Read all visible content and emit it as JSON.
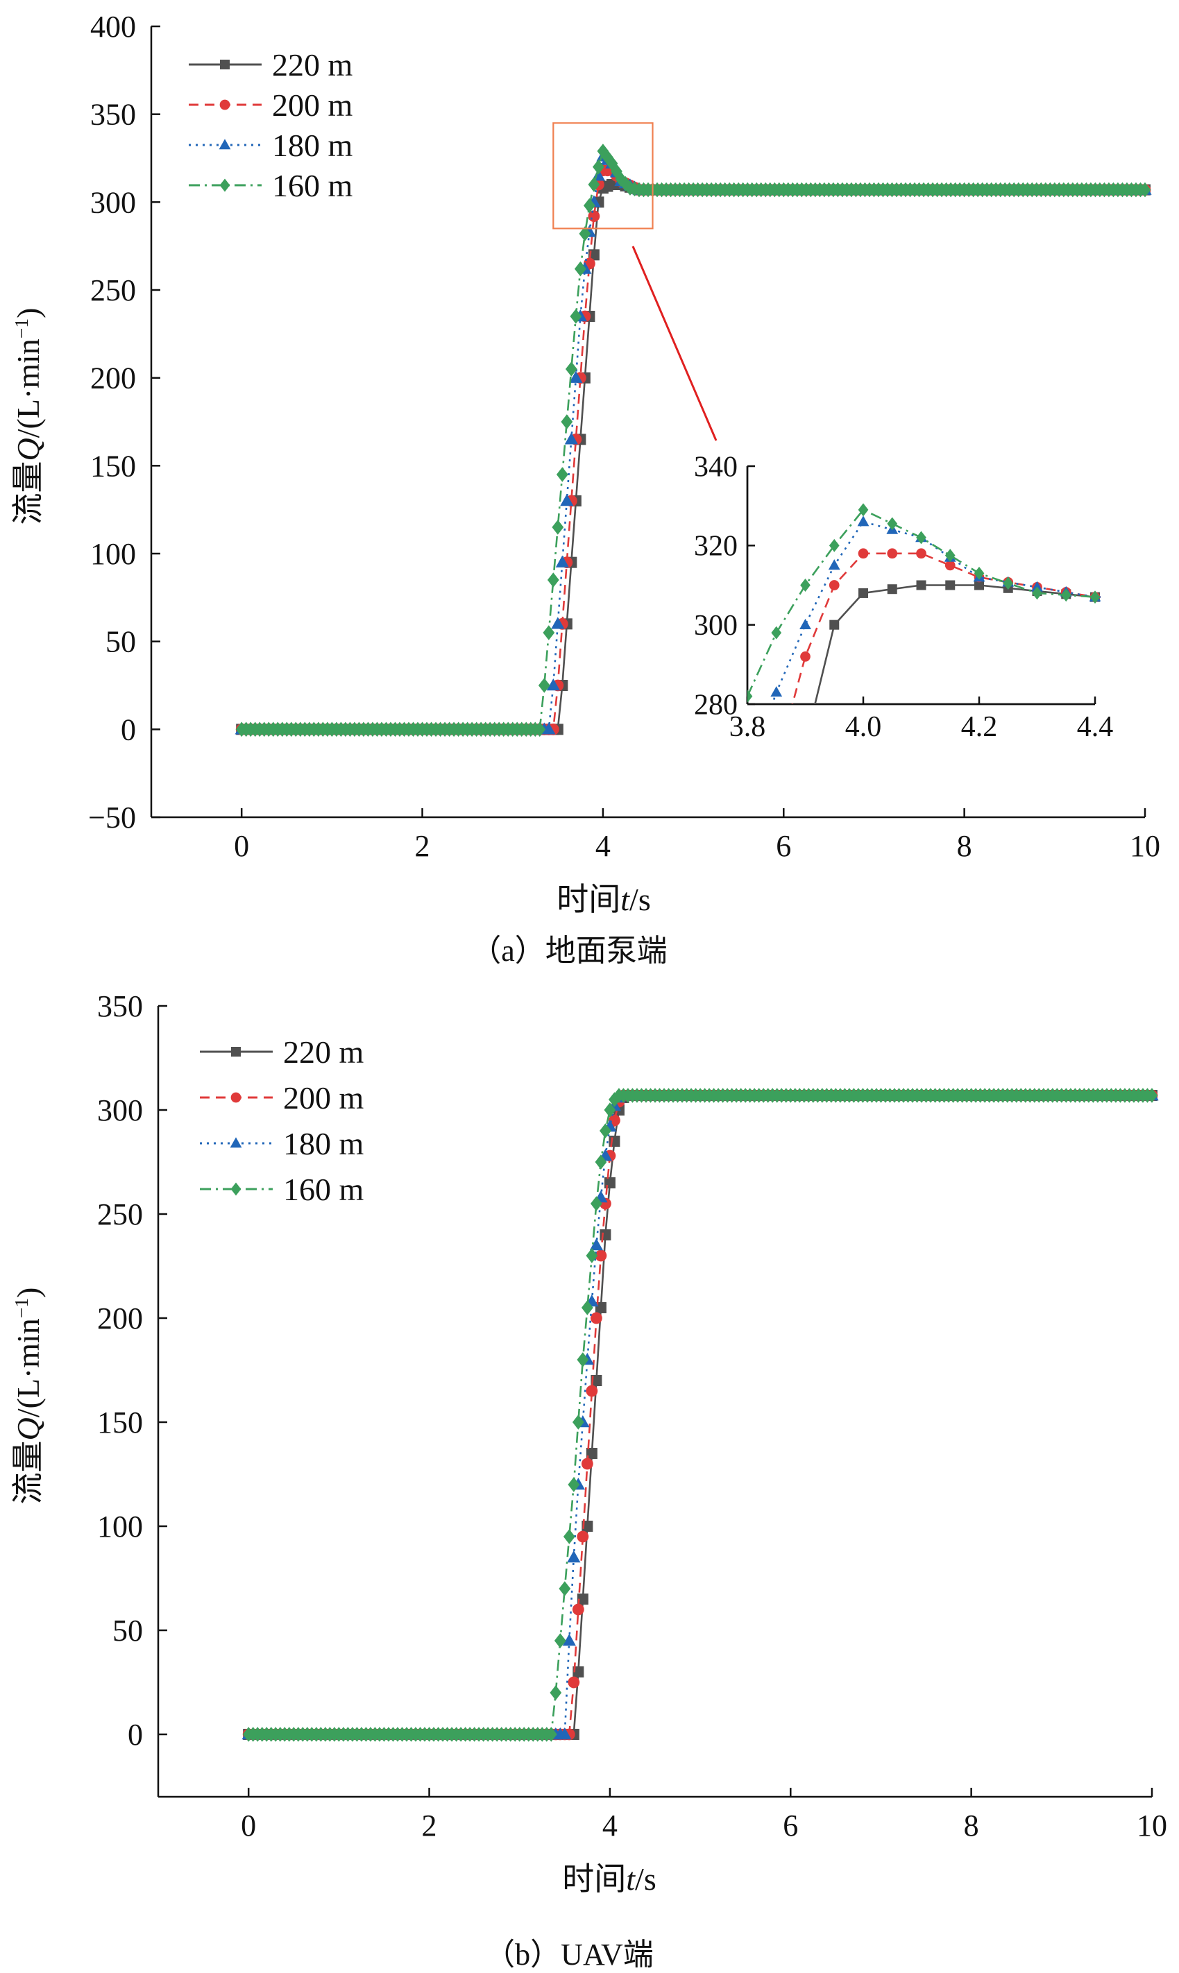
{
  "figure": {
    "top_panel_caption": "（a）地面泵端",
    "bottom_panel_caption": "（b）UAV端"
  },
  "chart_data": [
    {
      "type": "line",
      "panel": "a",
      "xlabel_prefix": "时间",
      "xlabel_var": "t",
      "xlabel_unit": "/s",
      "ylabel_prefix": "流量",
      "ylabel_var": "Q",
      "ylabel_unit": "/(L·min",
      "ylabel_exp": "−1",
      "ylabel_close": ")",
      "xlim": [
        -1,
        10
      ],
      "ylim": [
        -50,
        400
      ],
      "xticks": [
        0,
        2,
        4,
        6,
        8,
        10
      ],
      "yticks": [
        -50,
        0,
        50,
        100,
        150,
        200,
        250,
        300,
        350,
        400
      ],
      "xtick_labels": [
        "0",
        "2",
        "4",
        "6",
        "8",
        "10"
      ],
      "ytick_labels": [
        "−50",
        "0",
        "50",
        "100",
        "150",
        "200",
        "250",
        "300",
        "350",
        "400"
      ],
      "legend_position": "top-left",
      "series": [
        {
          "name": "220 m",
          "color": "#505050",
          "dash": "solid",
          "marker": "square",
          "x": [
            0,
            3.5,
            3.55,
            3.6,
            3.65,
            3.7,
            3.75,
            3.8,
            3.85,
            3.9,
            3.95,
            4.0,
            4.1,
            4.2,
            4.4,
            10
          ],
          "y": [
            0,
            0,
            25,
            60,
            95,
            130,
            165,
            200,
            235,
            270,
            300,
            308,
            310,
            310,
            307,
            307
          ]
        },
        {
          "name": "200 m",
          "color": "#e03a3a",
          "dash": "dashed",
          "marker": "circle",
          "x": [
            0,
            3.45,
            3.5,
            3.55,
            3.6,
            3.65,
            3.7,
            3.75,
            3.8,
            3.85,
            3.9,
            3.95,
            4.0,
            4.1,
            4.2,
            4.4,
            10
          ],
          "y": [
            0,
            0,
            25,
            60,
            95,
            130,
            165,
            200,
            235,
            265,
            292,
            310,
            318,
            318,
            312,
            307,
            307
          ]
        },
        {
          "name": "180 m",
          "color": "#2166b8",
          "dash": "dotted",
          "marker": "triangle",
          "x": [
            0,
            3.4,
            3.45,
            3.5,
            3.55,
            3.6,
            3.65,
            3.7,
            3.75,
            3.8,
            3.85,
            3.9,
            3.95,
            4.0,
            4.1,
            4.2,
            4.4,
            10
          ],
          "y": [
            0,
            0,
            25,
            60,
            95,
            130,
            165,
            200,
            235,
            262,
            283,
            300,
            315,
            326,
            322,
            312,
            307,
            307
          ]
        },
        {
          "name": "160 m",
          "color": "#3ca05c",
          "dash": "dashdot",
          "marker": "diamond",
          "x": [
            0,
            3.3,
            3.35,
            3.4,
            3.45,
            3.5,
            3.55,
            3.6,
            3.65,
            3.7,
            3.75,
            3.8,
            3.85,
            3.9,
            3.95,
            4.0,
            4.1,
            4.2,
            4.3,
            4.4,
            10
          ],
          "y": [
            0,
            0,
            25,
            55,
            85,
            115,
            145,
            175,
            205,
            235,
            262,
            282,
            298,
            310,
            320,
            329,
            322,
            313,
            308,
            307,
            307
          ]
        }
      ],
      "inset": {
        "xlim": [
          3.8,
          4.4
        ],
        "ylim": [
          280,
          340
        ],
        "xticks": [
          3.8,
          4.0,
          4.2,
          4.4
        ],
        "yticks": [
          280,
          300,
          320,
          340
        ],
        "xtick_labels": [
          "3.8",
          "4.0",
          "4.2",
          "4.4"
        ],
        "ytick_labels": [
          "280",
          "300",
          "320",
          "340"
        ],
        "highlight_box": {
          "x": [
            3.45,
            4.55
          ],
          "y": [
            285,
            345
          ]
        },
        "highlight_color": "#f08050",
        "pointer_color": "#e02020"
      }
    },
    {
      "type": "line",
      "panel": "b",
      "xlabel_prefix": "时间",
      "xlabel_var": "t",
      "xlabel_unit": "/s",
      "ylabel_prefix": "流量",
      "ylabel_var": "Q",
      "ylabel_unit": "/(L·min",
      "ylabel_exp": "−1",
      "ylabel_close": ")",
      "xlim": [
        -1,
        10
      ],
      "ylim": [
        -30,
        350
      ],
      "xticks": [
        0,
        2,
        4,
        6,
        8,
        10
      ],
      "yticks": [
        0,
        50,
        100,
        150,
        200,
        250,
        300,
        350
      ],
      "xtick_labels": [
        "0",
        "2",
        "4",
        "6",
        "8",
        "10"
      ],
      "ytick_labels": [
        "0",
        "50",
        "100",
        "150",
        "200",
        "250",
        "300",
        "350"
      ],
      "legend_position": "top-left",
      "series": [
        {
          "name": "220 m",
          "color": "#505050",
          "dash": "solid",
          "marker": "square",
          "x": [
            0,
            3.6,
            3.65,
            3.7,
            3.75,
            3.8,
            3.85,
            3.9,
            3.95,
            4.0,
            4.05,
            4.1,
            4.15,
            4.2,
            4.3,
            4.4,
            10
          ],
          "y": [
            0,
            0,
            30,
            65,
            100,
            135,
            170,
            205,
            240,
            265,
            285,
            300,
            306,
            307,
            307,
            307,
            307
          ]
        },
        {
          "name": "200 m",
          "color": "#e03a3a",
          "dash": "dashed",
          "marker": "circle",
          "x": [
            0,
            3.55,
            3.6,
            3.65,
            3.7,
            3.75,
            3.8,
            3.85,
            3.9,
            3.95,
            4.0,
            4.05,
            4.1,
            4.15,
            4.2,
            4.3,
            10
          ],
          "y": [
            0,
            0,
            25,
            60,
            95,
            130,
            165,
            200,
            230,
            255,
            278,
            295,
            304,
            307,
            307,
            307,
            307
          ]
        },
        {
          "name": "180 m",
          "color": "#2166b8",
          "dash": "dotted",
          "marker": "triangle",
          "x": [
            0,
            3.5,
            3.55,
            3.6,
            3.65,
            3.7,
            3.75,
            3.8,
            3.85,
            3.9,
            3.95,
            4.0,
            4.05,
            4.1,
            4.15,
            4.2,
            10
          ],
          "y": [
            0,
            0,
            45,
            85,
            120,
            150,
            180,
            208,
            235,
            258,
            278,
            292,
            302,
            306,
            307,
            307,
            307
          ]
        },
        {
          "name": "160 m",
          "color": "#3ca05c",
          "dash": "dashdot",
          "marker": "diamond",
          "x": [
            0,
            3.35,
            3.4,
            3.45,
            3.5,
            3.55,
            3.6,
            3.65,
            3.7,
            3.75,
            3.8,
            3.85,
            3.9,
            3.95,
            4.0,
            4.05,
            4.1,
            4.15,
            10
          ],
          "y": [
            0,
            0,
            20,
            45,
            70,
            95,
            120,
            150,
            180,
            205,
            230,
            255,
            275,
            290,
            300,
            305,
            307,
            307,
            307
          ]
        }
      ]
    }
  ]
}
